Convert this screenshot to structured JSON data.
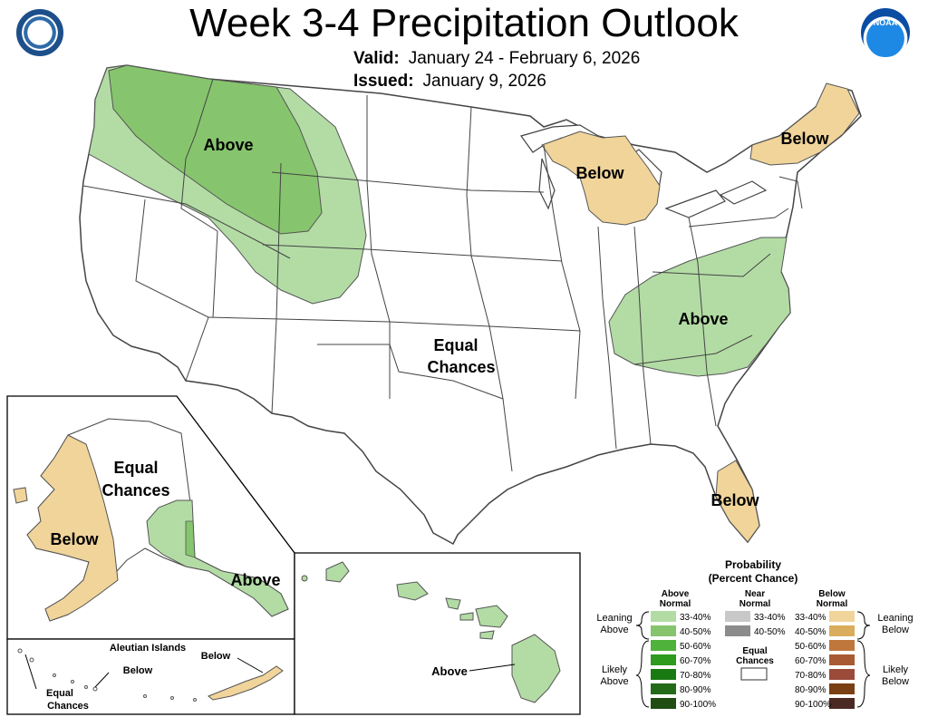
{
  "title": "Week 3-4 Precipitation Outlook",
  "valid": {
    "label": "Valid:",
    "value": "January 24 - February 6, 2026"
  },
  "issued": {
    "label": "Issued:",
    "value": "January 9, 2026"
  },
  "colors": {
    "above_33_40": "#b3dca5",
    "above_40_50": "#86c56d",
    "below_33_40": "#f0d49a",
    "below_40_50": "#d9ad5c",
    "boundary": "#444444"
  },
  "map_labels": {
    "conus_northwest": "Above",
    "conus_great_lakes": "Below",
    "conus_northeast": "Below",
    "conus_center_line1": "Equal",
    "conus_center_line2": "Chances",
    "conus_southeast": "Above",
    "conus_florida": "Below",
    "alaska_equal_line1": "Equal",
    "alaska_equal_line2": "Chances",
    "alaska_west": "Below",
    "alaska_southeast": "Above",
    "aleutian_title": "Aleutian Islands",
    "aleutian_below_1": "Below",
    "aleutian_below_2": "Below",
    "aleutian_equal_line1": "Equal",
    "aleutian_equal_line2": "Chances",
    "hawaii": "Above"
  },
  "legend": {
    "title_line1": "Probability",
    "title_line2": "(Percent Chance)",
    "above_header_line1": "Above",
    "above_header_line2": "Normal",
    "near_header_line1": "Near",
    "near_header_line2": "Normal",
    "below_header_line1": "Below",
    "below_header_line2": "Normal",
    "leaning_above_line1": "Leaning",
    "leaning_above_line2": "Above",
    "likely_above_line1": "Likely",
    "likely_above_line2": "Above",
    "leaning_below_line1": "Leaning",
    "leaning_below_line2": "Below",
    "likely_below_line1": "Likely",
    "likely_below_line2": "Below",
    "equal_chances_line1": "Equal",
    "equal_chances_line2": "Chances",
    "above_rows": [
      {
        "label": "33-40%",
        "color": "#b3dca5"
      },
      {
        "label": "40-50%",
        "color": "#86c56d"
      },
      {
        "label": "50-60%",
        "color": "#4fb23a"
      },
      {
        "label": "60-70%",
        "color": "#2e9a1e"
      },
      {
        "label": "70-80%",
        "color": "#1a7a12"
      },
      {
        "label": "80-90%",
        "color": "#246b19"
      },
      {
        "label": "90-100%",
        "color": "#1f4d12"
      }
    ],
    "near_rows": [
      {
        "label": "33-40%",
        "color": "#c8c8c8"
      },
      {
        "label": "40-50%",
        "color": "#8c8c8c"
      }
    ],
    "below_rows": [
      {
        "label": "33-40%",
        "color": "#f0d49a"
      },
      {
        "label": "40-50%",
        "color": "#d9ad5c"
      },
      {
        "label": "50-60%",
        "color": "#c0773c"
      },
      {
        "label": "60-70%",
        "color": "#a85a32"
      },
      {
        "label": "70-80%",
        "color": "#9c4a3a"
      },
      {
        "label": "80-90%",
        "color": "#7a3f12"
      },
      {
        "label": "90-100%",
        "color": "#4a2a22"
      }
    ]
  }
}
